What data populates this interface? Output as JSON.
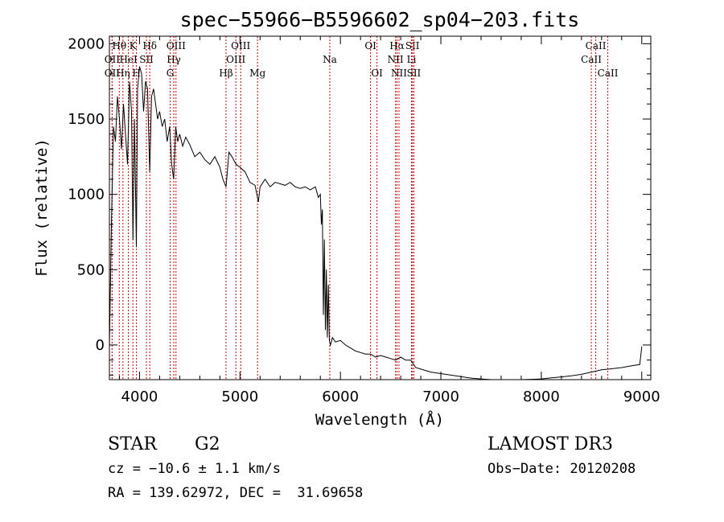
{
  "chart_data": {
    "type": "line",
    "title": "spec−55966−B5596602_sp04−203.fits",
    "xlabel": "Wavelength (Å)",
    "ylabel": "Flux (relative)",
    "xlim": [
      3700,
      9090
    ],
    "ylim": [
      -230,
      2050
    ],
    "x_ticks": [
      4000,
      5000,
      6000,
      7000,
      8000,
      9000
    ],
    "y_ticks": [
      0,
      500,
      1000,
      1500,
      2000
    ],
    "line_color": "#000000",
    "marker_color": "#cc0000",
    "series": [
      {
        "name": "flux",
        "x": [
          3700,
          3720,
          3740,
          3760,
          3780,
          3800,
          3820,
          3840,
          3860,
          3880,
          3900,
          3920,
          3935,
          3950,
          3968,
          3980,
          4000,
          4020,
          4040,
          4060,
          4080,
          4101,
          4120,
          4140,
          4160,
          4180,
          4200,
          4225,
          4250,
          4275,
          4300,
          4320,
          4340,
          4360,
          4380,
          4400,
          4430,
          4460,
          4500,
          4550,
          4600,
          4650,
          4700,
          4750,
          4800,
          4830,
          4861,
          4890,
          4920,
          4960,
          5000,
          5050,
          5100,
          5150,
          5183,
          5200,
          5250,
          5300,
          5350,
          5400,
          5450,
          5500,
          5550,
          5600,
          5650,
          5700,
          5750,
          5780,
          5800,
          5810,
          5820,
          5830,
          5840,
          5850,
          5860,
          5870,
          5880,
          5890,
          5900,
          5910,
          5920,
          5950,
          6000,
          6050,
          6100,
          6150,
          6200,
          6250,
          6300,
          6350,
          6400,
          6450,
          6500,
          6550,
          6600,
          6650,
          6700,
          6750,
          6800,
          6900,
          7000,
          7100,
          7200,
          7300,
          7400,
          7500,
          7600,
          7700,
          7800,
          7900,
          8000,
          8100,
          8200,
          8300,
          8400,
          8500,
          8600,
          8700,
          8800,
          8900,
          8980,
          9000
        ],
        "y": [
          -10,
          800,
          1450,
          1350,
          1650,
          1500,
          1300,
          1600,
          1400,
          1200,
          1750,
          1550,
          700,
          1500,
          650,
          1700,
          1850,
          1800,
          1550,
          1750,
          1700,
          1150,
          1650,
          1700,
          1600,
          1500,
          1550,
          1450,
          1500,
          1350,
          1450,
          1200,
          1100,
          1450,
          1350,
          1400,
          1320,
          1380,
          1330,
          1250,
          1280,
          1230,
          1200,
          1250,
          1180,
          1100,
          1050,
          1280,
          1250,
          1200,
          1180,
          1150,
          1080,
          1060,
          950,
          1050,
          1100,
          1050,
          1080,
          1070,
          1060,
          1080,
          1050,
          1040,
          1050,
          1030,
          1050,
          980,
          1000,
          800,
          900,
          200,
          700,
          100,
          500,
          50,
          400,
          30,
          0,
          20,
          50,
          20,
          30,
          0,
          -20,
          -40,
          -50,
          -60,
          -60,
          -80,
          -70,
          -80,
          -90,
          -100,
          -80,
          -100,
          -100,
          -150,
          -160,
          -180,
          -190,
          -200,
          -210,
          -220,
          -225,
          -230,
          -230,
          -235,
          -232,
          -228,
          -225,
          -218,
          -212,
          -205,
          -195,
          -180,
          -165,
          -158,
          -150,
          -138,
          -130,
          -10
        ]
      }
    ],
    "line_markers": [
      {
        "label": "Hθ",
        "x": 3798,
        "row": 0
      },
      {
        "label": "OII",
        "x": 3727,
        "row": 1
      },
      {
        "label": "OII",
        "x": 3727,
        "row": 2
      },
      {
        "label": "Hη",
        "x": 3835,
        "row": 2
      },
      {
        "label": "HeI",
        "x": 3889,
        "row": 1
      },
      {
        "label": "K",
        "x": 3934,
        "row": 0
      },
      {
        "label": "H",
        "x": 3969,
        "row": 2
      },
      {
        "label": "SII",
        "x": 4069,
        "row": 1
      },
      {
        "label": "Hδ",
        "x": 4102,
        "row": 0
      },
      {
        "label": "OIII",
        "x": 4363,
        "row": 0
      },
      {
        "label": "Hγ",
        "x": 4341,
        "row": 1
      },
      {
        "label": "G",
        "x": 4305,
        "row": 2
      },
      {
        "label": "Hβ",
        "x": 4861,
        "row": 2
      },
      {
        "label": "OIII",
        "x": 5007,
        "row": 0
      },
      {
        "label": "OIII",
        "x": 4959,
        "row": 1
      },
      {
        "label": "Mg",
        "x": 5175,
        "row": 2
      },
      {
        "label": "Na",
        "x": 5894,
        "row": 1
      },
      {
        "label": "OI",
        "x": 6300,
        "row": 0
      },
      {
        "label": "OI",
        "x": 6364,
        "row": 2
      },
      {
        "label": "Hα",
        "x": 6563,
        "row": 0
      },
      {
        "label": "NII",
        "x": 6548,
        "row": 1
      },
      {
        "label": "NII",
        "x": 6583,
        "row": 2
      },
      {
        "label": "SII",
        "x": 6717,
        "row": 0
      },
      {
        "label": "Li",
        "x": 6708,
        "row": 1
      },
      {
        "label": "SII",
        "x": 6731,
        "row": 2
      },
      {
        "label": "CaII",
        "x": 8542,
        "row": 0
      },
      {
        "label": "CaII",
        "x": 8498,
        "row": 1
      },
      {
        "label": "CaII",
        "x": 8662,
        "row": 2
      }
    ]
  },
  "footer": {
    "object_class": "STAR",
    "subclass": "G2",
    "survey": "LAMOST DR3",
    "redshift_text": "cz = −10.6 ± 1.1 km/s",
    "obs_date": "Obs−Date: 20120208",
    "coords_text": "RA = 139.62972, DEC =  31.69658"
  }
}
